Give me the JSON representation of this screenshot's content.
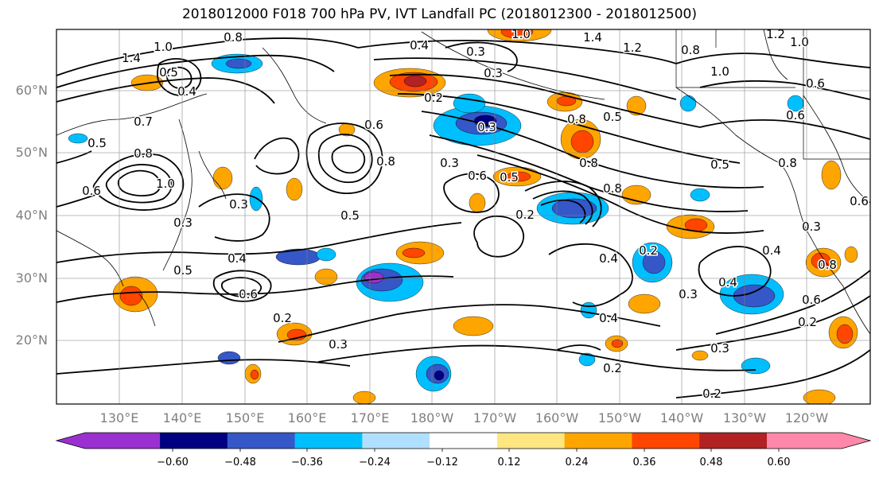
{
  "title": "2018012000 F018 700 hPa PV, IVT Landfall PC (2018012300 - 2018012500)",
  "lat_labels": [
    "60°N",
    "50°N",
    "40°N",
    "30°N",
    "20°N"
  ],
  "lon_labels": [
    "130°E",
    "140°E",
    "150°E",
    "160°E",
    "170°E",
    "180°W",
    "170°W",
    "160°W",
    "150°W",
    "140°W",
    "130°W",
    "120°W"
  ],
  "colorbar": {
    "ticks": [
      "−0.60",
      "−0.48",
      "−0.36",
      "−0.24",
      "−0.12",
      "0.12",
      "0.24",
      "0.36",
      "0.48",
      "0.60"
    ],
    "colors": [
      "#9b30d0",
      "#000080",
      "#3657c8",
      "#00bfff",
      "#b0e0ff",
      "#ffffff",
      "#ffe680",
      "#ffa500",
      "#ff4500",
      "#b22222",
      "#ff88aa"
    ]
  },
  "contour_labels": [
    "1.4",
    "1.0",
    "0.8",
    "0.6",
    "0.5",
    "0.4",
    "0.3",
    "0.2",
    "0.7",
    "1.2"
  ],
  "palette": {
    "purple": "#9b30d0",
    "navy": "#000080",
    "blue": "#3657c8",
    "cyan": "#00bfff",
    "lightblue": "#b0e0ff",
    "yellow": "#ffe680",
    "orange": "#ffa500",
    "red": "#ff4500",
    "darkred": "#b22222",
    "pink": "#ff88aa"
  }
}
